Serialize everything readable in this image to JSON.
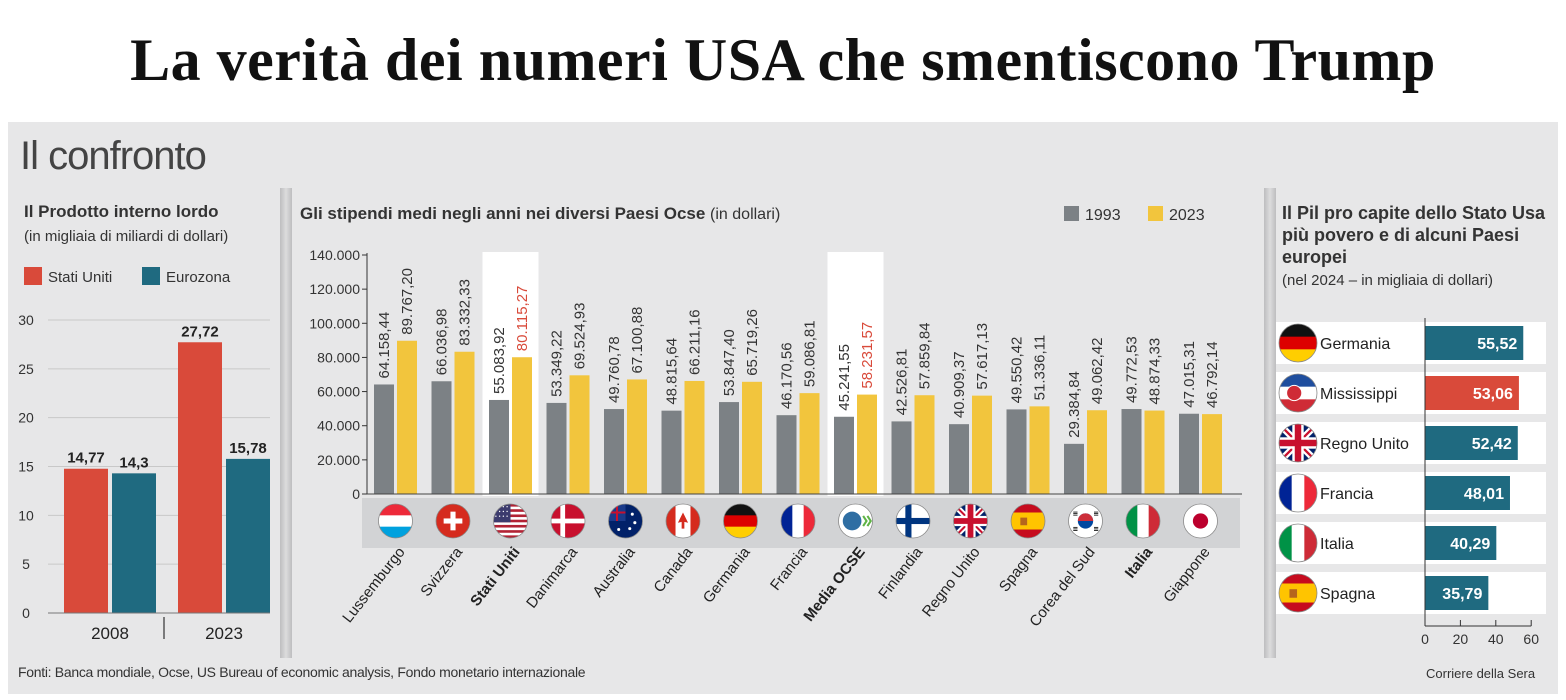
{
  "headline": "La verità dei numeri USA che smentiscono Trump",
  "panel_title": "Il confronto",
  "footer": {
    "sources": "Fonti: Banca mondiale, Ocse, US Bureau of economic analysis, Fondo monetario internazionale",
    "credit": "Corriere della Sera"
  },
  "colors": {
    "us_red": "#d94a3a",
    "euro_teal": "#1f6a80",
    "gray_1993": "#7c8185",
    "yellow_2023": "#f2c53d",
    "highlight_red": "#d94a3a"
  },
  "chart_data": [
    {
      "type": "bar",
      "title": "Il Prodotto interno lordo",
      "subtitle": "(in migliaia di miliardi di dollari)",
      "categories": [
        "2008",
        "2023"
      ],
      "series": [
        {
          "name": "Stati Uniti",
          "values": [
            14.77,
            27.72
          ],
          "labels": [
            "14,77",
            "27,72"
          ]
        },
        {
          "name": "Eurozona",
          "values": [
            14.3,
            15.78
          ],
          "labels": [
            "14,3",
            "15,78"
          ]
        }
      ],
      "ylim": [
        0,
        30
      ],
      "yticks": [
        0,
        5,
        10,
        15,
        20,
        25,
        30
      ],
      "grid": true,
      "legend": "top"
    },
    {
      "type": "bar",
      "title": "Gli stipendi medi negli anni nei diversi Paesi Ocse",
      "subtitle": "(in dollari)",
      "categories": [
        "Lussemburgo",
        "Svizzera",
        "Stati Uniti",
        "Danimarca",
        "Australia",
        "Canada",
        "Germania",
        "Francia",
        "Media OCSE",
        "Finlandia",
        "Regno Unito",
        "Spagna",
        "Corea del Sud",
        "Italia",
        "Giappone"
      ],
      "highlighted": [
        "Stati Uniti",
        "Media OCSE"
      ],
      "bold": [
        "Stati Uniti",
        "Media OCSE",
        "Italia"
      ],
      "series": [
        {
          "name": "1993",
          "values": [
            64158.44,
            66036.98,
            55083.92,
            53349.22,
            49760.78,
            48815.64,
            53847.4,
            46170.56,
            45241.55,
            42526.81,
            40909.37,
            49550.42,
            29384.84,
            49772.53,
            47015.31
          ],
          "labels": [
            "64.158,44",
            "66.036,98",
            "55.083,92",
            "53.349,22",
            "49.760,78",
            "48.815,64",
            "53.847,40",
            "46.170,56",
            "45.241,55",
            "42.526,81",
            "40.909,37",
            "49.550,42",
            "29.384,84",
            "49.772,53",
            "47.015,31"
          ]
        },
        {
          "name": "2023",
          "values": [
            89767.2,
            83332.33,
            80115.27,
            69524.93,
            67100.88,
            66211.16,
            65719.26,
            59086.81,
            58231.57,
            57859.84,
            57617.13,
            51336.11,
            49062.42,
            48874.33,
            46792.14
          ],
          "labels": [
            "89.767,20",
            "83.332,33",
            "80.115,27",
            "69.524,93",
            "67.100,88",
            "66.211,16",
            "65.719,26",
            "59.086,81",
            "58.231,57",
            "57.859,84",
            "57.617,13",
            "51.336,11",
            "49.062,42",
            "48.874,33",
            "46.792,14"
          ]
        }
      ],
      "ylim": [
        0,
        140000
      ],
      "yticks": [
        "0",
        "20.000",
        "40.000",
        "60.000",
        "80.000",
        "100.000",
        "120.000",
        "140.000"
      ],
      "grid": false,
      "legend": "top-right",
      "flags": [
        "flag-luxembourg",
        "flag-switzerland",
        "flag-usa",
        "flag-denmark",
        "flag-australia",
        "flag-canada",
        "flag-germany",
        "flag-france",
        "oecd-logo",
        "flag-finland",
        "flag-uk",
        "flag-spain",
        "flag-south-korea",
        "flag-italy",
        "flag-japan"
      ]
    },
    {
      "type": "bar",
      "orientation": "horizontal",
      "title": "Il Pil pro capite dello Stato Usa più povero e di alcuni Paesi europei",
      "subtitle": "(nel 2024 – in migliaia di dollari)",
      "categories": [
        "Germania",
        "Mississippi",
        "Regno Unito",
        "Francia",
        "Italia",
        "Spagna"
      ],
      "values": [
        55.52,
        53.06,
        52.42,
        48.01,
        40.29,
        35.79
      ],
      "labels": [
        "55,52",
        "53,06",
        "52,42",
        "48,01",
        "40,29",
        "35,79"
      ],
      "highlighted": [
        "Mississippi"
      ],
      "xlim": [
        0,
        60
      ],
      "xticks": [
        0,
        20,
        40,
        60
      ],
      "flags": [
        "flag-germany",
        "flag-mississippi",
        "flag-uk",
        "flag-france",
        "flag-italy",
        "flag-spain"
      ]
    }
  ]
}
